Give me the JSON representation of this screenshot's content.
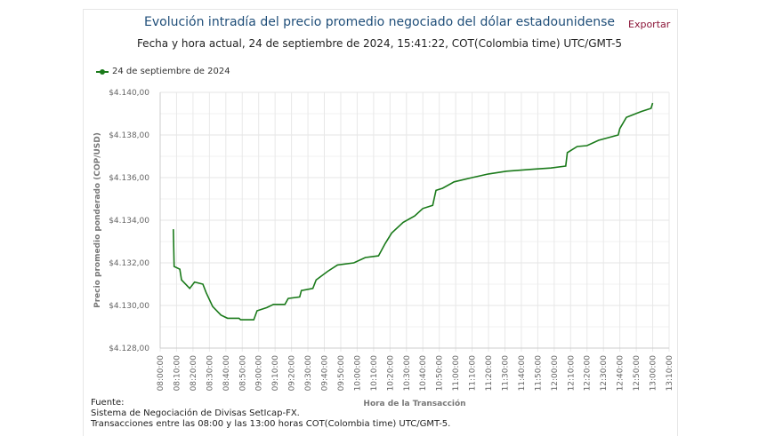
{
  "header": {
    "title": "Evolución intradía del precio promedio negociado del dólar estadounidense",
    "subtitle": "Fecha y hora actual, 24 de septiembre de 2024, 15:41:22, COT(Colombia time) UTC/GMT-5",
    "export_label": "Exportar"
  },
  "footer": {
    "label": "Fuente:",
    "line1": "Sistema de Negociación de Divisas SetIcap-FX.",
    "line2": "Transacciones entre las 08:00 y las 13:00 horas COT(Colombia time) UTC/GMT-5."
  },
  "colors": {
    "series": "#1a7a1a",
    "title": "#1f4e79",
    "export": "#8b1538"
  },
  "chart_data": {
    "type": "line",
    "xlabel": "Hora de la Transacción",
    "ylabel": "Precio promedio ponderado (COP/USD)",
    "legend_position": "top-left",
    "grid": true,
    "ylim": [
      4128,
      4140
    ],
    "yticks": [
      "$4.128,00",
      "$4.130,00",
      "$4.132,00",
      "$4.134,00",
      "$4.136,00",
      "$4.138,00",
      "$4.140,00"
    ],
    "xticks": [
      "08:00:00",
      "08:10:00",
      "08:20:00",
      "08:30:00",
      "08:40:00",
      "08:50:00",
      "09:00:00",
      "09:10:00",
      "09:20:00",
      "09:30:00",
      "09:40:00",
      "09:50:00",
      "10:00:00",
      "10:10:00",
      "10:20:00",
      "10:30:00",
      "10:40:00",
      "10:50:00",
      "11:00:00",
      "11:10:00",
      "11:20:00",
      "11:30:00",
      "11:40:00",
      "11:50:00",
      "12:00:00",
      "12:10:00",
      "12:20:00",
      "12:30:00",
      "12:40:00",
      "12:50:00",
      "13:00:00",
      "13:10:00"
    ],
    "series": [
      {
        "name": "24 de septiembre de 2024",
        "points": [
          [
            "08:08",
            4133.58
          ],
          [
            "08:08:30",
            4131.83
          ],
          [
            "08:12",
            4131.7
          ],
          [
            "08:13",
            4131.2
          ],
          [
            "08:18",
            4130.8
          ],
          [
            "08:21",
            4131.1
          ],
          [
            "08:26",
            4131.0
          ],
          [
            "08:28",
            4130.6
          ],
          [
            "08:32",
            4129.95
          ],
          [
            "08:37",
            4129.55
          ],
          [
            "08:41",
            4129.4
          ],
          [
            "08:48",
            4129.4
          ],
          [
            "08:49",
            4129.33
          ],
          [
            "08:57",
            4129.33
          ],
          [
            "08:59",
            4129.75
          ],
          [
            "09:05",
            4129.9
          ],
          [
            "09:09",
            4130.05
          ],
          [
            "09:16",
            4130.05
          ],
          [
            "09:18",
            4130.33
          ],
          [
            "09:25",
            4130.4
          ],
          [
            "09:26",
            4130.7
          ],
          [
            "09:33",
            4130.8
          ],
          [
            "09:35",
            4131.2
          ],
          [
            "09:42",
            4131.6
          ],
          [
            "09:48",
            4131.9
          ],
          [
            "09:58",
            4132.0
          ],
          [
            "10:05",
            4132.25
          ],
          [
            "10:13",
            4132.33
          ],
          [
            "10:17",
            4132.9
          ],
          [
            "10:21",
            4133.4
          ],
          [
            "10:28",
            4133.9
          ],
          [
            "10:35",
            4134.2
          ],
          [
            "10:40",
            4134.55
          ],
          [
            "10:46",
            4134.7
          ],
          [
            "10:48",
            4135.4
          ],
          [
            "10:52",
            4135.5
          ],
          [
            "10:59",
            4135.8
          ],
          [
            "11:10",
            4136.0
          ],
          [
            "11:20",
            4136.17
          ],
          [
            "11:31",
            4136.3
          ],
          [
            "11:48",
            4136.4
          ],
          [
            "11:58",
            4136.45
          ],
          [
            "12:07",
            4136.54
          ],
          [
            "12:08",
            4137.17
          ],
          [
            "12:14",
            4137.46
          ],
          [
            "12:20",
            4137.5
          ],
          [
            "12:27",
            4137.75
          ],
          [
            "12:39",
            4138.0
          ],
          [
            "12:40",
            4138.3
          ],
          [
            "12:44",
            4138.83
          ],
          [
            "12:53",
            4139.1
          ],
          [
            "12:59",
            4139.25
          ],
          [
            "13:00",
            4139.5
          ]
        ]
      }
    ]
  }
}
